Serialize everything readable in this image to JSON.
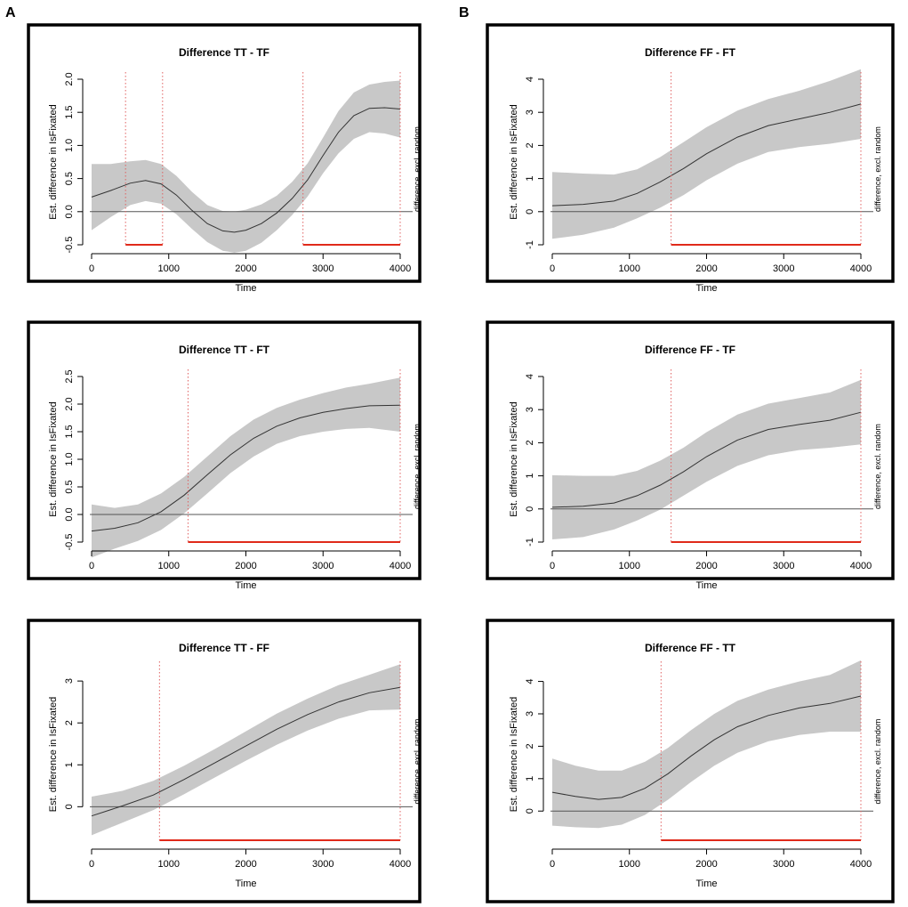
{
  "panel_labels": {
    "a": "A",
    "b": "B"
  },
  "colors": {
    "band": "#c8c8c8",
    "line": "#333333",
    "zero": "#555555",
    "sig": "#e02a1a",
    "vline": "#e06060",
    "frame": "#000000"
  },
  "chart_data": [
    {
      "type": "line",
      "title": "Difference TT - TF",
      "xlabel": "Time",
      "ylabel": "Est. difference in IsFixated",
      "side_label": "difference, excl. random",
      "xlim": [
        0,
        4000
      ],
      "ylim": [
        -0.5,
        2.0
      ],
      "xticks": [
        0,
        1000,
        2000,
        3000,
        4000
      ],
      "yticks": [
        -0.5,
        0.0,
        0.5,
        1.0,
        1.5,
        2.0
      ],
      "ytick_labels": [
        "-0.5",
        "0.0",
        "0.5",
        "1.0",
        "1.5",
        "2.0"
      ],
      "x": [
        0,
        250,
        500,
        700,
        900,
        1100,
        1300,
        1500,
        1700,
        1850,
        2000,
        2200,
        2400,
        2600,
        2800,
        3000,
        3200,
        3400,
        3600,
        3800,
        4000
      ],
      "fit": [
        0.22,
        0.32,
        0.43,
        0.47,
        0.42,
        0.25,
        0.02,
        -0.18,
        -0.29,
        -0.31,
        -0.28,
        -0.18,
        -0.02,
        0.2,
        0.48,
        0.85,
        1.2,
        1.45,
        1.56,
        1.57,
        1.55
      ],
      "lower": [
        -0.28,
        -0.08,
        0.1,
        0.16,
        0.12,
        -0.04,
        -0.26,
        -0.46,
        -0.59,
        -0.62,
        -0.59,
        -0.47,
        -0.28,
        -0.05,
        0.23,
        0.58,
        0.88,
        1.1,
        1.2,
        1.18,
        1.12
      ],
      "upper": [
        0.72,
        0.72,
        0.76,
        0.78,
        0.72,
        0.54,
        0.3,
        0.1,
        0.01,
        0.0,
        0.03,
        0.11,
        0.24,
        0.45,
        0.73,
        1.12,
        1.52,
        1.8,
        1.92,
        1.96,
        1.98
      ],
      "sig_intervals": [
        [
          440,
          920
        ],
        [
          2740,
          4000
        ]
      ],
      "vlines": [
        440,
        920,
        2740,
        4000
      ]
    },
    {
      "type": "line",
      "title": "Difference FF - FT",
      "xlabel": "Time",
      "ylabel": "Est. difference in IsFixated",
      "side_label": "difference, excl. random",
      "xlim": [
        0,
        4000
      ],
      "ylim": [
        -1,
        4
      ],
      "xticks": [
        0,
        1000,
        2000,
        3000,
        4000
      ],
      "yticks": [
        -1,
        0,
        1,
        2,
        3,
        4
      ],
      "ytick_labels": [
        "-1",
        "0",
        "1",
        "2",
        "3",
        "4"
      ],
      "x": [
        0,
        400,
        800,
        1100,
        1400,
        1700,
        2000,
        2400,
        2800,
        3200,
        3600,
        4000
      ],
      "fit": [
        0.18,
        0.22,
        0.32,
        0.55,
        0.9,
        1.3,
        1.75,
        2.25,
        2.6,
        2.8,
        3.0,
        3.25
      ],
      "lower": [
        -0.82,
        -0.7,
        -0.48,
        -0.2,
        0.12,
        0.5,
        0.95,
        1.45,
        1.8,
        1.95,
        2.05,
        2.2
      ],
      "upper": [
        1.2,
        1.15,
        1.12,
        1.28,
        1.65,
        2.1,
        2.55,
        3.05,
        3.4,
        3.65,
        3.95,
        4.3
      ],
      "sig_intervals": [
        [
          1540,
          4000
        ]
      ],
      "vlines": [
        1540,
        4000
      ]
    },
    {
      "type": "line",
      "title": "Difference TT - FT",
      "xlabel": "Time",
      "ylabel": "Est. difference in IsFixated",
      "side_label": "difference, excl. random",
      "xlim": [
        0,
        4000
      ],
      "ylim": [
        -0.5,
        2.5
      ],
      "xticks": [
        0,
        1000,
        2000,
        3000,
        4000
      ],
      "yticks": [
        -0.5,
        0.0,
        0.5,
        1.0,
        1.5,
        2.0,
        2.5
      ],
      "ytick_labels": [
        "-0.5",
        "0.0",
        "0.5",
        "1.0",
        "1.5",
        "2.0",
        "2.5"
      ],
      "x": [
        0,
        300,
        600,
        900,
        1200,
        1500,
        1800,
        2100,
        2400,
        2700,
        3000,
        3300,
        3600,
        4000
      ],
      "fit": [
        -0.3,
        -0.25,
        -0.15,
        0.05,
        0.35,
        0.72,
        1.08,
        1.38,
        1.6,
        1.75,
        1.85,
        1.92,
        1.97,
        1.98
      ],
      "lower": [
        -0.78,
        -0.62,
        -0.48,
        -0.28,
        0.02,
        0.38,
        0.75,
        1.05,
        1.28,
        1.42,
        1.5,
        1.55,
        1.57,
        1.5
      ],
      "upper": [
        0.18,
        0.12,
        0.18,
        0.38,
        0.68,
        1.05,
        1.42,
        1.72,
        1.93,
        2.08,
        2.2,
        2.3,
        2.37,
        2.48
      ],
      "sig_intervals": [
        [
          1250,
          4000
        ]
      ],
      "vlines": [
        1250,
        4000
      ]
    },
    {
      "type": "line",
      "title": "Difference FF - TF",
      "xlabel": "Time",
      "ylabel": "Est. difference in IsFixated",
      "side_label": "difference, excl. random",
      "xlim": [
        0,
        4000
      ],
      "ylim": [
        -1,
        4
      ],
      "xticks": [
        0,
        1000,
        2000,
        3000,
        4000
      ],
      "yticks": [
        -1,
        0,
        1,
        2,
        3,
        4
      ],
      "ytick_labels": [
        "-1",
        "0",
        "1",
        "2",
        "3",
        "4"
      ],
      "x": [
        0,
        400,
        800,
        1100,
        1400,
        1700,
        2000,
        2400,
        2800,
        3200,
        3600,
        4000
      ],
      "fit": [
        0.05,
        0.08,
        0.18,
        0.4,
        0.72,
        1.12,
        1.58,
        2.08,
        2.4,
        2.55,
        2.68,
        2.92
      ],
      "lower": [
        -0.92,
        -0.85,
        -0.62,
        -0.35,
        -0.02,
        0.4,
        0.82,
        1.3,
        1.62,
        1.78,
        1.85,
        1.95
      ],
      "upper": [
        1.02,
        1.0,
        1.0,
        1.15,
        1.46,
        1.85,
        2.32,
        2.85,
        3.18,
        3.35,
        3.52,
        3.9
      ],
      "sig_intervals": [
        [
          1540,
          4000
        ]
      ],
      "vlines": [
        1540,
        4000
      ]
    },
    {
      "type": "line",
      "title": "Difference TT - FF",
      "xlabel": "Time",
      "ylabel": "Est. difference in IsFixated",
      "side_label": "difference, excl. random",
      "xlim": [
        0,
        4000
      ],
      "ylim": [
        -0.8,
        3.3
      ],
      "xticks": [
        0,
        1000,
        2000,
        3000,
        4000
      ],
      "yticks": [
        0,
        1,
        2,
        3
      ],
      "ytick_labels": [
        "0",
        "1",
        "2",
        "3"
      ],
      "x": [
        0,
        400,
        800,
        1200,
        1600,
        2000,
        2400,
        2800,
        3200,
        3600,
        4000
      ],
      "fit": [
        -0.22,
        0.02,
        0.28,
        0.65,
        1.05,
        1.45,
        1.85,
        2.2,
        2.5,
        2.72,
        2.85
      ],
      "lower": [
        -0.68,
        -0.38,
        -0.08,
        0.3,
        0.7,
        1.1,
        1.48,
        1.82,
        2.1,
        2.3,
        2.32
      ],
      "upper": [
        0.24,
        0.38,
        0.62,
        0.98,
        1.38,
        1.8,
        2.22,
        2.58,
        2.9,
        3.15,
        3.4
      ],
      "sig_intervals": [
        [
          880,
          4000
        ]
      ],
      "vlines": [
        880,
        4000
      ]
    },
    {
      "type": "line",
      "title": "Difference FF - TT",
      "xlabel": "Time",
      "ylabel": "Est. difference in IsFixated",
      "side_label": "difference, excl. random",
      "xlim": [
        0,
        4000
      ],
      "ylim": [
        -0.9,
        4.4
      ],
      "xticks": [
        0,
        1000,
        2000,
        3000,
        4000
      ],
      "yticks": [
        0,
        1,
        2,
        3,
        4
      ],
      "ytick_labels": [
        "0",
        "1",
        "2",
        "3",
        "4"
      ],
      "x": [
        0,
        300,
        600,
        900,
        1200,
        1500,
        1800,
        2100,
        2400,
        2800,
        3200,
        3600,
        4000
      ],
      "fit": [
        0.58,
        0.45,
        0.36,
        0.42,
        0.7,
        1.15,
        1.7,
        2.2,
        2.6,
        2.95,
        3.18,
        3.32,
        3.55
      ],
      "lower": [
        -0.45,
        -0.5,
        -0.52,
        -0.42,
        -0.12,
        0.35,
        0.9,
        1.4,
        1.8,
        2.15,
        2.35,
        2.45,
        2.45
      ],
      "upper": [
        1.62,
        1.4,
        1.25,
        1.25,
        1.52,
        1.95,
        2.5,
        3.0,
        3.4,
        3.75,
        4.0,
        4.2,
        4.65
      ],
      "sig_intervals": [
        [
          1410,
          4000
        ]
      ],
      "vlines": [
        1410,
        4000
      ]
    }
  ]
}
